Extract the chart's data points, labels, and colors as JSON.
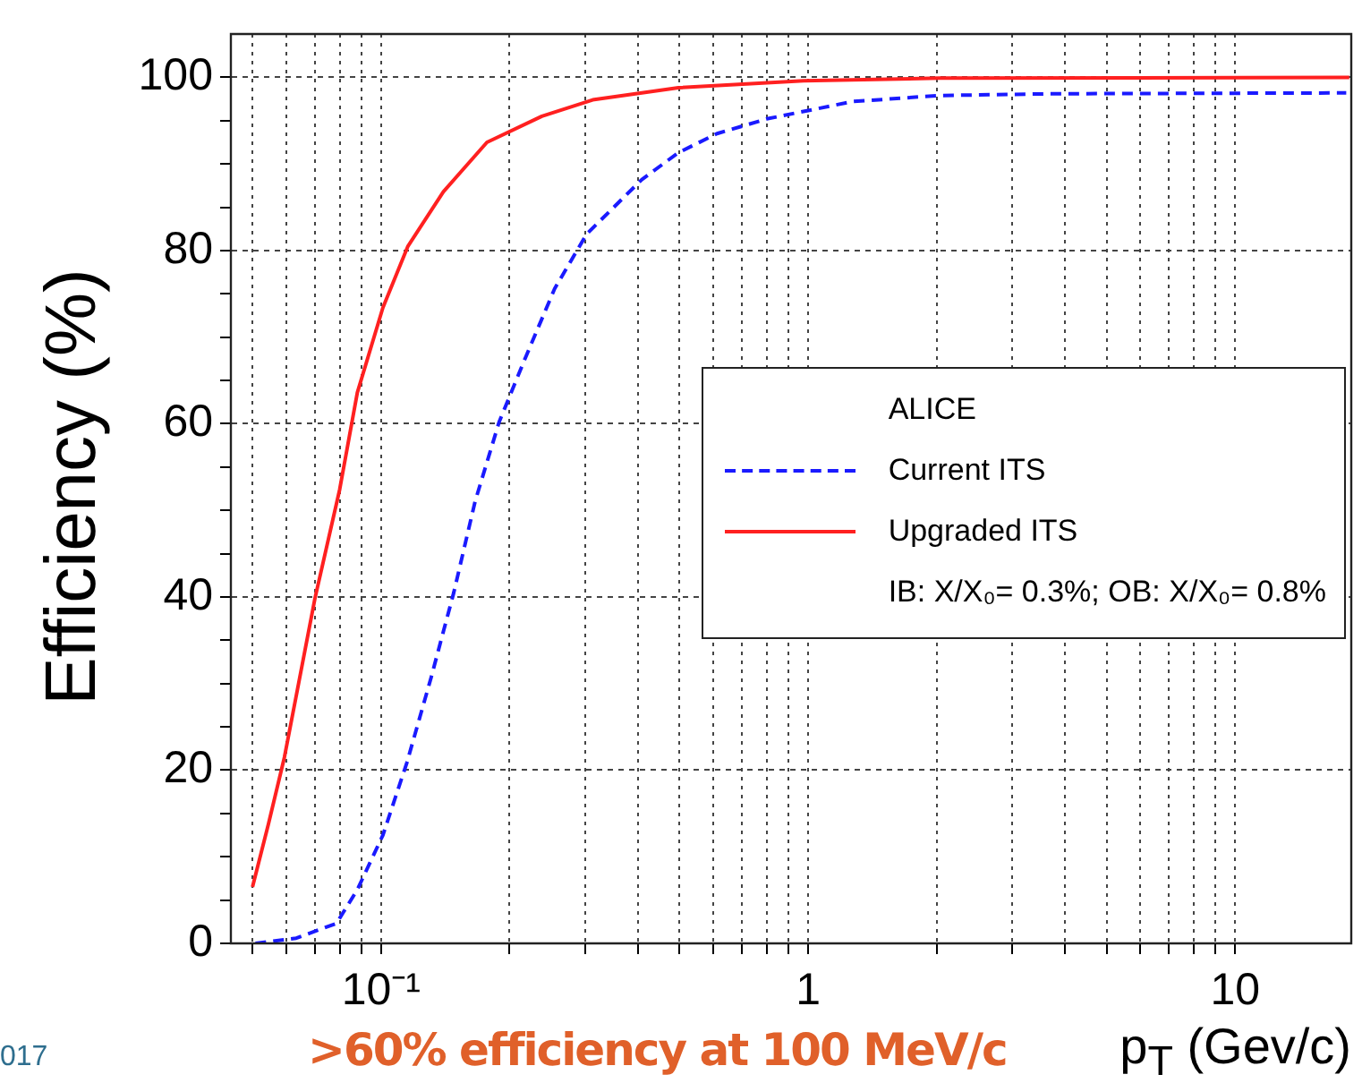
{
  "chart_data": {
    "type": "line",
    "xlabel": "p$_{T}$ (Gev/c)",
    "ylabel": "Efficiency (%)",
    "legend_title": "ALICE",
    "annotations": [
      "IB: X/X₀= 0.3%; OB: X/X₀= 0.8%",
      ">60% efficiency at 100 MeV/c",
      "017"
    ],
    "log": "x",
    "grid": true,
    "legend": "right",
    "marker": "none",
    "xlim": [
      0.0445,
      18.7
    ],
    "ylim": [
      0,
      105
    ],
    "xticks": [
      {
        "value": 0.05,
        "label": null
      },
      {
        "value": 0.06,
        "label": null
      },
      {
        "value": 0.07,
        "label": null
      },
      {
        "value": 0.08,
        "label": null
      },
      {
        "value": 0.09,
        "label": null
      },
      {
        "value": 0.1,
        "label": "10⁻¹"
      },
      {
        "value": 0.2,
        "label": null
      },
      {
        "value": 0.3,
        "label": null
      },
      {
        "value": 0.4,
        "label": null
      },
      {
        "value": 0.5,
        "label": null
      },
      {
        "value": 0.6,
        "label": null
      },
      {
        "value": 0.7,
        "label": null
      },
      {
        "value": 0.8,
        "label": null
      },
      {
        "value": 0.9,
        "label": null
      },
      1,
      {
        "value": 2,
        "label": null
      },
      {
        "value": 3,
        "label": null
      },
      {
        "value": 4,
        "label": null
      },
      {
        "value": 5,
        "label": null
      },
      {
        "value": 6,
        "label": null
      },
      {
        "value": 7,
        "label": null
      },
      {
        "value": 8,
        "label": null
      },
      {
        "value": 9,
        "label": null
      },
      10
    ],
    "yticks": [
      0,
      {
        "value": 5,
        "label": null
      },
      {
        "value": 10,
        "label": null
      },
      {
        "value": 15,
        "label": null
      },
      20,
      {
        "value": 25,
        "label": null
      },
      {
        "value": 30,
        "label": null
      },
      {
        "value": 35,
        "label": null
      },
      40,
      {
        "value": 45,
        "label": null
      },
      {
        "value": 50,
        "label": null
      },
      {
        "value": 55,
        "label": null
      },
      60,
      {
        "value": 65,
        "label": null
      },
      {
        "value": 70,
        "label": null
      },
      {
        "value": 75,
        "label": null
      },
      80,
      {
        "value": 85,
        "label": null
      },
      {
        "value": 90,
        "label": null
      },
      {
        "value": 95,
        "label": null
      },
      100
    ],
    "series": [
      {
        "name": "Current ITS",
        "color": "#1a1aff",
        "line_style": "dashed",
        "x": [
          0.0508,
          0.0633,
          0.0786,
          0.088,
          0.101,
          0.115,
          0.131,
          0.148,
          0.166,
          0.189,
          0.216,
          0.255,
          0.303,
          0.408,
          0.497,
          0.612,
          0.8,
          1.27,
          2.03,
          3.69,
          18.2
        ],
        "values": [
          0,
          0.6,
          2.3,
          6.2,
          12.5,
          20.9,
          30.7,
          40.5,
          51,
          60.2,
          67.2,
          75.6,
          81.9,
          88.2,
          91.3,
          93.5,
          95.2,
          97.2,
          97.9,
          98.1,
          98.2
        ]
      },
      {
        "name": "Upgraded ITS",
        "color": "#ff2020",
        "line_style": "solid",
        "x": [
          0.05,
          0.0545,
          0.0594,
          0.07,
          0.08,
          0.088,
          0.101,
          0.1156,
          0.14,
          0.177,
          0.238,
          0.313,
          0.497,
          0.976,
          2.03,
          18.5
        ],
        "values": [
          6.5,
          13.8,
          21.5,
          39.8,
          52.4,
          63.6,
          73.4,
          80.5,
          86.8,
          92.5,
          95.5,
          97.4,
          98.8,
          99.6,
          99.9,
          100
        ]
      }
    ]
  }
}
